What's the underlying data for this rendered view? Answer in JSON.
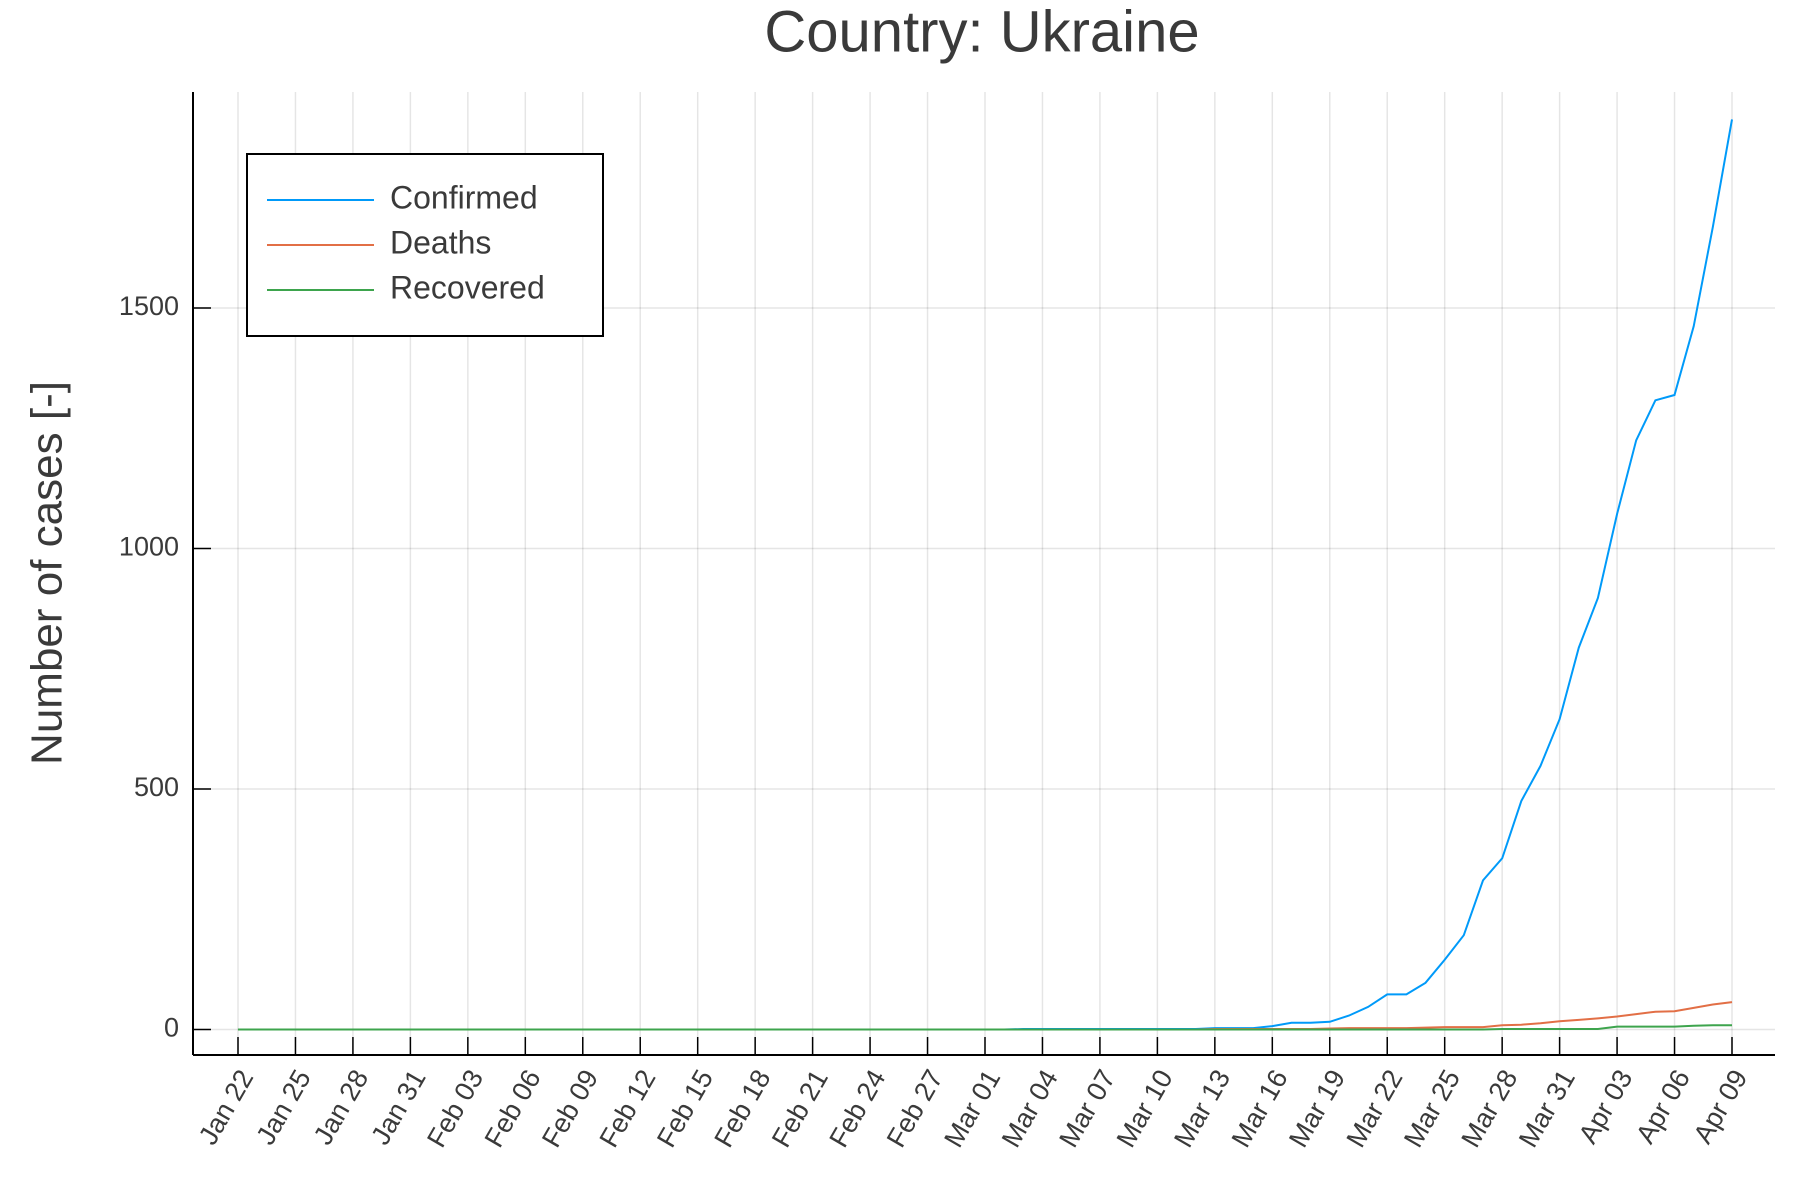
{
  "chart_data": {
    "type": "line",
    "title": "Country: Ukraine",
    "y_label": "Number of cases [-]",
    "categories": [
      "Jan 22",
      null,
      null,
      "Jan 25",
      null,
      null,
      "Jan 28",
      null,
      null,
      "Jan 31",
      null,
      null,
      "Feb 03",
      null,
      null,
      "Feb 06",
      null,
      null,
      "Feb 09",
      null,
      null,
      "Feb 12",
      null,
      null,
      "Feb 15",
      null,
      null,
      "Feb 18",
      null,
      null,
      "Feb 21",
      null,
      null,
      "Feb 24",
      null,
      null,
      "Feb 27",
      null,
      null,
      "Mar 01",
      null,
      null,
      "Mar 04",
      null,
      null,
      "Mar 07",
      null,
      null,
      "Mar 10",
      null,
      null,
      "Mar 13",
      null,
      null,
      "Mar 16",
      null,
      null,
      "Mar 19",
      null,
      null,
      "Mar 22",
      null,
      null,
      "Mar 25",
      null,
      null,
      "Mar 28",
      null,
      null,
      "Mar 31",
      null,
      null,
      "Apr 03",
      null,
      null,
      "Apr 06",
      null,
      null,
      "Apr 09"
    ],
    "series": [
      {
        "name": "Confirmed",
        "color": "#009af9",
        "values": [
          0,
          0,
          0,
          0,
          0,
          0,
          0,
          0,
          0,
          0,
          0,
          0,
          0,
          0,
          0,
          0,
          0,
          0,
          0,
          0,
          0,
          0,
          0,
          0,
          0,
          0,
          0,
          0,
          0,
          0,
          0,
          0,
          0,
          0,
          0,
          0,
          0,
          0,
          0,
          0,
          0,
          1,
          1,
          1,
          1,
          1,
          1,
          1,
          1,
          1,
          1,
          3,
          3,
          3,
          7,
          14,
          14,
          16,
          29,
          47,
          73,
          73,
          97,
          145,
          196,
          310,
          356,
          475,
          548,
          645,
          794,
          897,
          1072,
          1225,
          1308,
          1319,
          1462,
          1668,
          1892
        ]
      },
      {
        "name": "Deaths",
        "color": "#e26f46",
        "values": [
          0,
          0,
          0,
          0,
          0,
          0,
          0,
          0,
          0,
          0,
          0,
          0,
          0,
          0,
          0,
          0,
          0,
          0,
          0,
          0,
          0,
          0,
          0,
          0,
          0,
          0,
          0,
          0,
          0,
          0,
          0,
          0,
          0,
          0,
          0,
          0,
          0,
          0,
          0,
          0,
          0,
          0,
          0,
          0,
          0,
          0,
          0,
          0,
          0,
          0,
          0,
          1,
          1,
          1,
          1,
          1,
          1,
          2,
          3,
          3,
          3,
          3,
          4,
          5,
          5,
          5,
          9,
          10,
          13,
          17,
          20,
          23,
          27,
          32,
          37,
          38,
          45,
          52,
          57
        ]
      },
      {
        "name": "Recovered",
        "color": "#3da44d",
        "values": [
          0,
          0,
          0,
          0,
          0,
          0,
          0,
          0,
          0,
          0,
          0,
          0,
          0,
          0,
          0,
          0,
          0,
          0,
          0,
          0,
          0,
          0,
          0,
          0,
          0,
          0,
          0,
          0,
          0,
          0,
          0,
          0,
          0,
          0,
          0,
          0,
          0,
          0,
          0,
          0,
          0,
          0,
          0,
          0,
          0,
          0,
          0,
          0,
          0,
          0,
          0,
          0,
          0,
          0,
          0,
          0,
          0,
          0,
          0,
          0,
          0,
          0,
          0,
          0,
          0,
          0,
          1,
          1,
          1,
          1,
          1,
          1,
          6,
          6,
          6,
          6,
          8,
          9,
          9
        ]
      }
    ],
    "ylim": [
      -53,
      1949
    ],
    "yticks": [
      0,
      500,
      1000,
      1500
    ],
    "grid": true,
    "legend": "upper left"
  }
}
